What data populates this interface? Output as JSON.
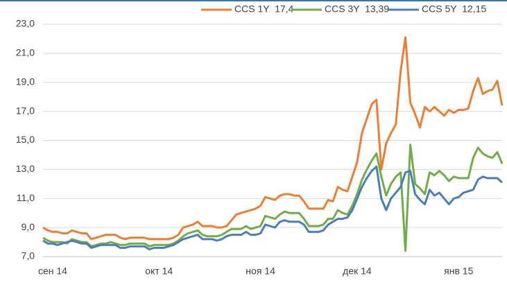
{
  "chart_data": {
    "type": "line",
    "categories": [
      null,
      null,
      "сен 14",
      null,
      null,
      null,
      null,
      null,
      null,
      null,
      null,
      null,
      null,
      null,
      null,
      null,
      null,
      null,
      null,
      null,
      null,
      null,
      null,
      null,
      "окт 14",
      null,
      null,
      null,
      null,
      null,
      null,
      null,
      null,
      null,
      null,
      null,
      null,
      null,
      null,
      null,
      null,
      null,
      null,
      null,
      null,
      "ноя 14",
      null,
      null,
      null,
      null,
      null,
      null,
      null,
      null,
      null,
      null,
      null,
      null,
      null,
      null,
      null,
      null,
      null,
      null,
      null,
      "дек 14",
      null,
      null,
      null,
      null,
      null,
      null,
      null,
      null,
      null,
      null,
      null,
      null,
      null,
      null,
      null,
      null,
      null,
      null,
      null,
      null,
      "янв 15",
      null,
      null,
      null,
      null,
      null,
      null,
      null,
      null,
      null
    ],
    "series": [
      {
        "name": "CCS 1Y  17,4",
        "color": "#ed7d31",
        "values": [
          9.0,
          8.8,
          8.7,
          8.7,
          8.6,
          8.6,
          8.8,
          8.7,
          8.6,
          8.6,
          8.2,
          8.3,
          8.4,
          8.5,
          8.5,
          8.5,
          8.3,
          8.2,
          8.3,
          8.3,
          8.3,
          8.3,
          8.2,
          8.2,
          8.2,
          8.2,
          8.2,
          8.3,
          8.5,
          9.0,
          9.1,
          9.2,
          9.4,
          9.1,
          9.1,
          9.1,
          9.0,
          9.0,
          9.1,
          9.5,
          9.9,
          10.0,
          10.1,
          10.2,
          10.3,
          10.5,
          11.1,
          11.0,
          10.9,
          11.2,
          11.3,
          11.3,
          11.2,
          11.2,
          10.8,
          10.3,
          10.3,
          10.3,
          10.3,
          10.9,
          10.8,
          11.8,
          11.6,
          11.5,
          12.5,
          13.5,
          15.5,
          16.5,
          17.5,
          17.8,
          13.0,
          14.8,
          15.5,
          16.1,
          19.8,
          22.1,
          17.6,
          16.8,
          15.9,
          17.3,
          17.0,
          17.3,
          17.0,
          16.7,
          17.1,
          16.9,
          17.1,
          17.1,
          17.2,
          18.4,
          19.3,
          18.2,
          18.4,
          18.5,
          19.1,
          17.4
        ]
      },
      {
        "name": "CCS 3Y  13,39",
        "color": "#70ad47",
        "values": [
          8.3,
          8.1,
          8.0,
          8.0,
          8.0,
          7.9,
          8.2,
          8.1,
          8.0,
          8.0,
          7.7,
          7.8,
          7.9,
          7.9,
          8.0,
          7.9,
          7.8,
          7.8,
          7.9,
          7.9,
          7.9,
          7.9,
          7.7,
          7.8,
          7.8,
          7.8,
          7.8,
          7.9,
          8.1,
          8.4,
          8.6,
          8.7,
          8.8,
          8.5,
          8.4,
          8.4,
          8.4,
          8.5,
          8.7,
          8.9,
          8.9,
          8.9,
          9.1,
          8.9,
          9.0,
          9.1,
          9.8,
          9.7,
          9.6,
          9.9,
          10.1,
          10.0,
          10.0,
          10.0,
          9.6,
          9.1,
          9.1,
          9.1,
          9.2,
          9.6,
          9.6,
          10.2,
          10.0,
          9.9,
          10.5,
          11.3,
          12.3,
          13.0,
          13.6,
          14.1,
          12.5,
          11.2,
          12.0,
          12.5,
          12.8,
          7.4,
          14.7,
          12.0,
          11.7,
          11.3,
          12.8,
          12.6,
          12.9,
          12.6,
          12.2,
          12.5,
          12.4,
          12.4,
          12.4,
          13.8,
          14.5,
          14.1,
          13.9,
          13.8,
          14.2,
          13.4
        ]
      },
      {
        "name": "CCS 5Y  12,15",
        "color": "#4a7ebb",
        "values": [
          8.1,
          7.9,
          7.9,
          7.8,
          7.9,
          8.0,
          8.1,
          8.0,
          7.9,
          7.9,
          7.6,
          7.7,
          7.8,
          7.8,
          7.8,
          7.8,
          7.6,
          7.6,
          7.7,
          7.7,
          7.7,
          7.7,
          7.5,
          7.6,
          7.6,
          7.6,
          7.7,
          7.8,
          8.0,
          8.2,
          8.3,
          8.4,
          8.5,
          8.2,
          8.2,
          8.2,
          8.1,
          8.2,
          8.4,
          8.5,
          8.5,
          8.5,
          8.7,
          8.5,
          8.5,
          8.6,
          9.2,
          9.1,
          9.0,
          9.4,
          9.5,
          9.4,
          9.4,
          9.4,
          9.2,
          8.7,
          8.7,
          8.7,
          8.8,
          9.2,
          9.4,
          9.6,
          9.6,
          9.7,
          10.2,
          11.0,
          11.8,
          12.4,
          12.9,
          13.2,
          11.0,
          10.2,
          11.0,
          11.4,
          11.8,
          12.8,
          12.9,
          11.3,
          10.9,
          10.6,
          11.6,
          11.2,
          11.4,
          11.0,
          10.6,
          11.0,
          11.1,
          11.4,
          11.5,
          11.6,
          12.3,
          12.5,
          12.4,
          12.4,
          12.4,
          12.1
        ]
      }
    ],
    "ylim": [
      7,
      23
    ],
    "yticks": [
      {
        "value": 7,
        "label": "7,0"
      },
      {
        "value": 9,
        "label": "9,0"
      },
      {
        "value": 11,
        "label": "11,0"
      },
      {
        "value": 13,
        "label": "13,0"
      },
      {
        "value": 15,
        "label": "15,0"
      },
      {
        "value": 17,
        "label": "17,0"
      },
      {
        "value": 19,
        "label": "19,0"
      },
      {
        "value": 21,
        "label": "21,0"
      },
      {
        "value": 23,
        "label": "23,0"
      }
    ],
    "grid": true,
    "legend": "top"
  }
}
